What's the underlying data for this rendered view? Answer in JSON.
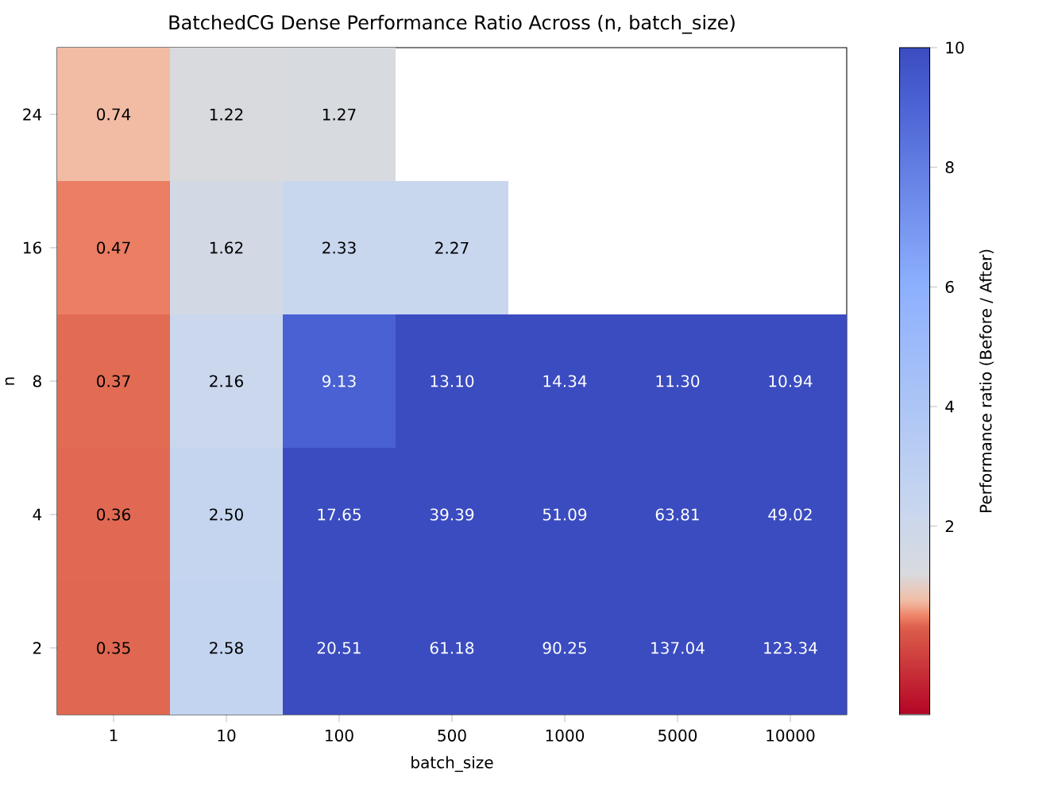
{
  "chart_data": {
    "type": "heatmap",
    "title": "BatchedCG Dense Performance Ratio Across (n, batch_size)",
    "xlabel": "batch_size",
    "ylabel": "n",
    "clabel": "Performance ratio (Before / After)",
    "categories": [
      "1",
      "10",
      "100",
      "500",
      "1000",
      "5000",
      "10000"
    ],
    "y_categories": [
      "24",
      "16",
      "8",
      "4",
      "2"
    ],
    "cells": [
      [
        0.74,
        1.22,
        1.27,
        null,
        null,
        null,
        null
      ],
      [
        0.47,
        1.62,
        2.33,
        2.27,
        null,
        null,
        null
      ],
      [
        0.37,
        2.16,
        9.13,
        13.1,
        14.34,
        11.3,
        10.94
      ],
      [
        0.36,
        2.5,
        17.65,
        39.39,
        51.09,
        63.81,
        49.02
      ],
      [
        0.35,
        2.58,
        20.51,
        61.18,
        90.25,
        137.04,
        123.34
      ]
    ],
    "cell_labels": [
      [
        "0.74",
        "1.22",
        "1.27",
        null,
        null,
        null,
        null
      ],
      [
        "0.47",
        "1.62",
        "2.33",
        "2.27",
        null,
        null,
        null
      ],
      [
        "0.37",
        "2.16",
        "9.13",
        "13.10",
        "14.34",
        "11.30",
        "10.94"
      ],
      [
        "0.36",
        "2.50",
        "17.65",
        "39.39",
        "51.09",
        "63.81",
        "49.02"
      ],
      [
        "0.35",
        "2.58",
        "20.51",
        "61.18",
        "90.25",
        "137.04",
        "123.34"
      ]
    ],
    "clim": [
      -1.15,
      10
    ],
    "cticks": [
      2,
      4,
      6,
      8,
      10
    ]
  }
}
